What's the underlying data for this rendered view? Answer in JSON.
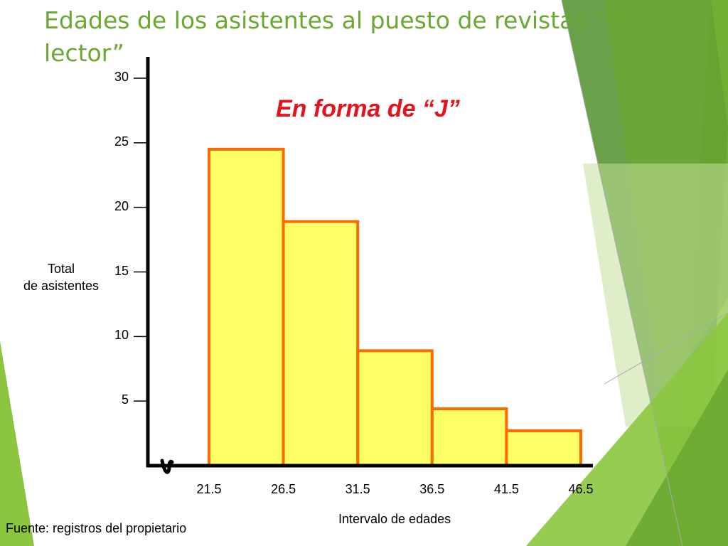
{
  "slide": {
    "title": "Edades de los asistentes al puesto de revistas “El lector”",
    "source": "Fuente: registros del propietario",
    "accent_colors": [
      "#8cc63f",
      "#6aa832",
      "#4f8f2a",
      "#c5e09a"
    ]
  },
  "chart_data": {
    "type": "bar",
    "title": "Edades de los asistentes al puesto de revistas “El lector”",
    "subtitle": "En forma de “J”",
    "xlabel": "Intervalo de edades",
    "ylabel_lines": [
      "Total",
      "de asistentes"
    ],
    "x_ticks": [
      "21.5",
      "26.5",
      "31.5",
      "36.5",
      "41.5",
      "46.5"
    ],
    "y_ticks": [
      "5",
      "10",
      "15",
      "20",
      "25",
      "30"
    ],
    "ylim": [
      0,
      30
    ],
    "bins": [
      {
        "from": 21.5,
        "to": 26.5,
        "value": 24.5
      },
      {
        "from": 26.5,
        "to": 31.5,
        "value": 18.9
      },
      {
        "from": 31.5,
        "to": 36.5,
        "value": 8.9
      },
      {
        "from": 36.5,
        "to": 41.5,
        "value": 4.4
      },
      {
        "from": 41.5,
        "to": 46.5,
        "value": 2.7
      }
    ],
    "bar_fill": "#ffff66",
    "bar_edge": "#ff6a00",
    "grid": false,
    "legend": "none"
  }
}
